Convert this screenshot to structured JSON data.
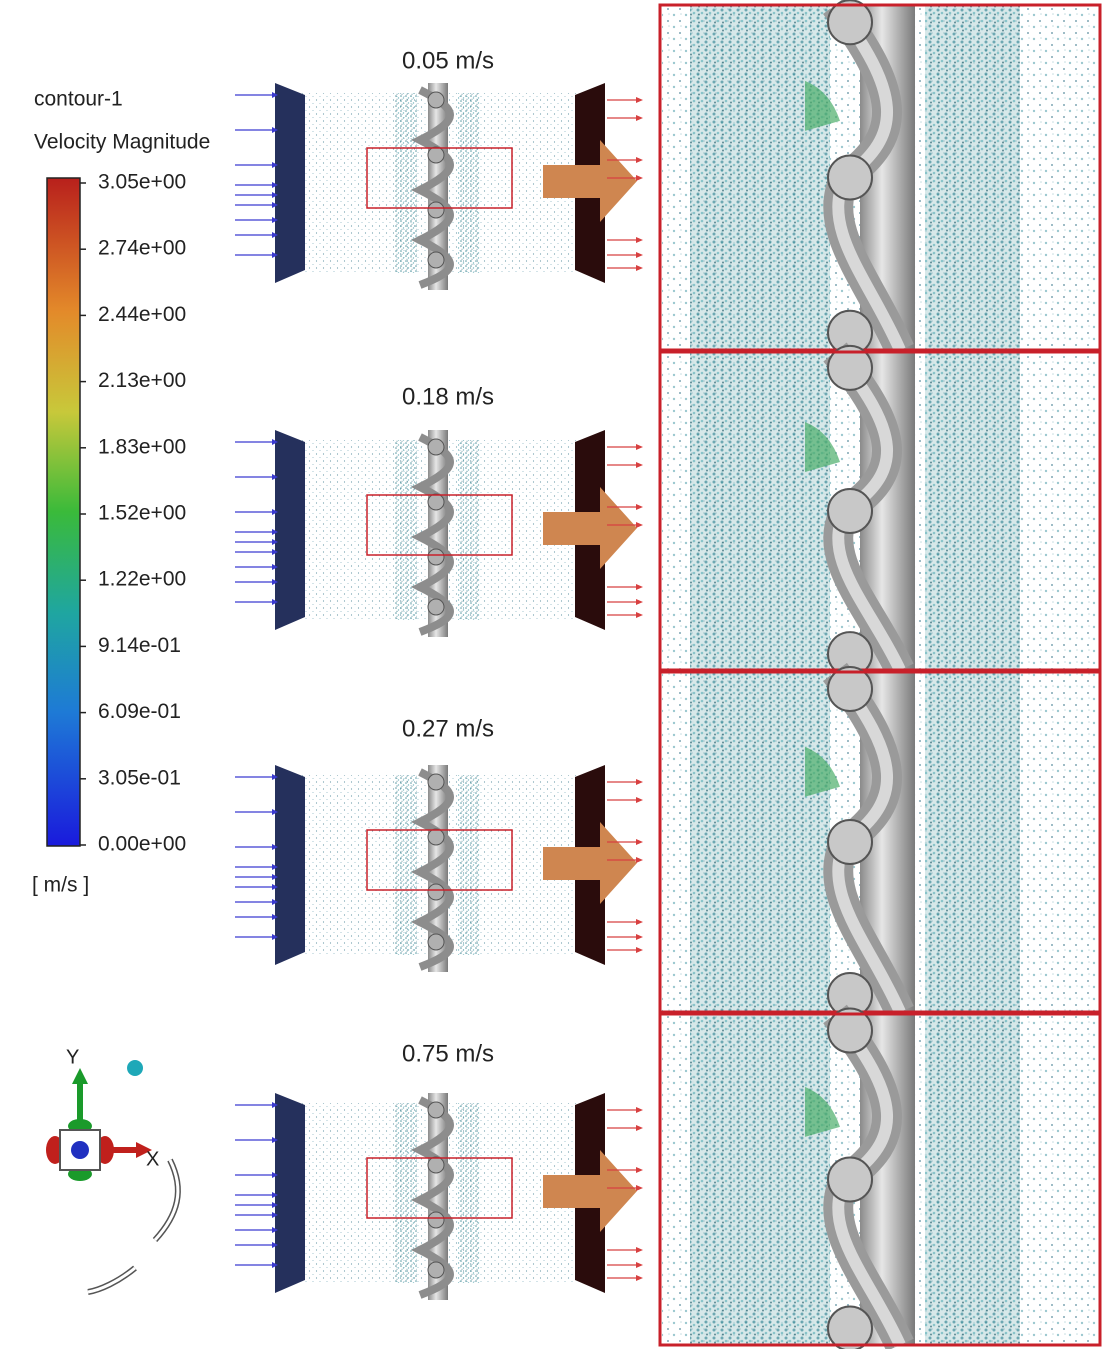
{
  "legend": {
    "title": "contour-1",
    "variable": "Velocity Magnitude",
    "ticks": [
      "3.05e+00",
      "2.74e+00",
      "2.44e+00",
      "2.13e+00",
      "1.83e+00",
      "1.52e+00",
      "1.22e+00",
      "9.14e-01",
      "6.09e-01",
      "3.05e-01",
      "0.00e+00"
    ],
    "unit": "[ m/s ]"
  },
  "axes": {
    "y": "Y",
    "x": "X"
  },
  "panels": [
    {
      "label": "0.05 m/s"
    },
    {
      "label": "0.18 m/s"
    },
    {
      "label": "0.27 m/s"
    },
    {
      "label": "0.75 m/s"
    }
  ]
}
